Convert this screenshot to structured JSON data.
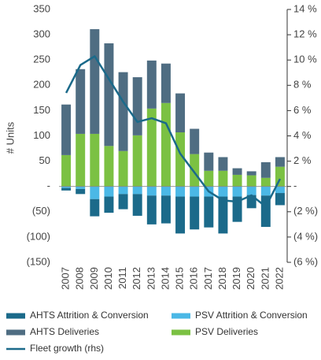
{
  "chart_data": {
    "type": "bar",
    "y_label": "# Units",
    "categories": [
      "2007",
      "2008",
      "2009",
      "2010",
      "2011",
      "2012",
      "2013",
      "2014",
      "2015",
      "2016",
      "2017",
      "2018",
      "2019",
      "2020",
      "2021",
      "2022"
    ],
    "series": [
      {
        "name": "AHTS Attrition & Conversion",
        "color": "#1b6a8a",
        "values": [
          -5,
          -10,
          -34,
          -32,
          -30,
          -43,
          -57,
          -55,
          -73,
          -65,
          -61,
          -73,
          -50,
          -26,
          -62,
          -24
        ]
      },
      {
        "name": "PSV Attrition & Conversion",
        "color": "#4bb8e6",
        "values": [
          -3,
          -5,
          -25,
          -20,
          -15,
          -15,
          -18,
          -18,
          -20,
          -20,
          -20,
          -20,
          -20,
          -17,
          -18,
          -13
        ]
      },
      {
        "name": "AHTS Deliveries",
        "color": "#4f6d82",
        "values": [
          100,
          128,
          207,
          203,
          156,
          115,
          95,
          78,
          77,
          50,
          36,
          27,
          13,
          8,
          31,
          19
        ]
      },
      {
        "name": "PSV Deliveries",
        "color": "#7bc143",
        "values": [
          62,
          104,
          104,
          80,
          70,
          101,
          154,
          165,
          107,
          64,
          31,
          31,
          23,
          22,
          17,
          39
        ]
      },
      {
        "name": "Fleet growth (rhs)",
        "color": "#1b6a8a",
        "type": "line",
        "axis": "y2",
        "values": [
          7.4,
          9.6,
          10.3,
          8.5,
          6.7,
          5.1,
          5.4,
          5.0,
          2.6,
          1.1,
          -0.4,
          -1.1,
          -1.2,
          -0.7,
          -1.6,
          0.6
        ]
      }
    ],
    "ylim": [
      -150,
      350
    ],
    "yticks": [
      350,
      300,
      250,
      200,
      150,
      100,
      50,
      {
        "value": 0,
        "label": "-"
      },
      {
        "value": -50,
        "label": "(50)"
      },
      {
        "value": -100,
        "label": "(100)"
      },
      {
        "value": -150,
        "label": "(150)"
      }
    ],
    "y2lim": [
      -6,
      14
    ],
    "y2ticks": [
      {
        "value": 14,
        "label": "14 %"
      },
      {
        "value": 12,
        "label": "12 %"
      },
      {
        "value": 10,
        "label": "10 %"
      },
      {
        "value": 8,
        "label": "8 %"
      },
      {
        "value": 6,
        "label": "6 %"
      },
      {
        "value": 4,
        "label": "4 %"
      },
      {
        "value": 2,
        "label": "2 %"
      },
      {
        "value": 0,
        "label": "-"
      },
      {
        "value": -2,
        "label": "(2 %)"
      },
      {
        "value": -4,
        "label": "(4 %)"
      },
      {
        "value": -6,
        "label": "(6 %)"
      }
    ]
  }
}
